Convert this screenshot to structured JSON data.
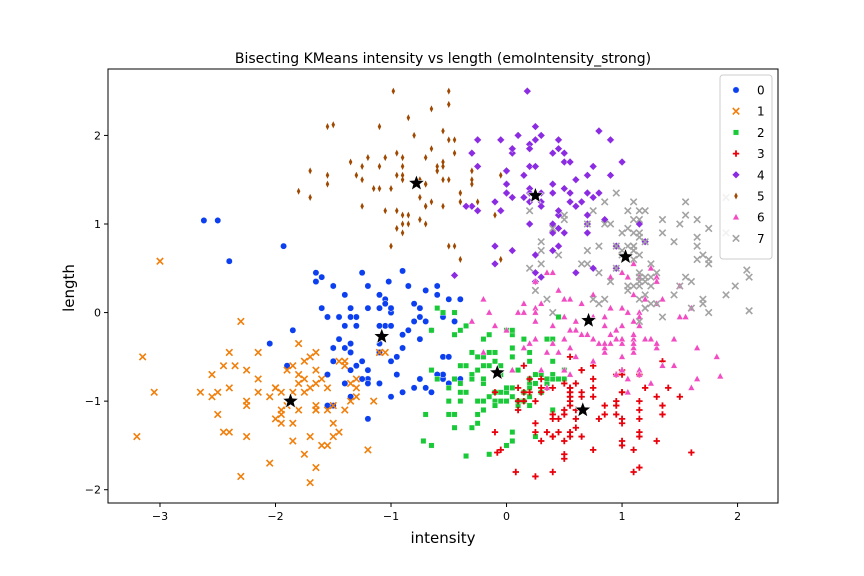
{
  "chart_data": {
    "type": "scatter",
    "title": "Bisecting KMeans intensity vs length (emoIntensity_strong)",
    "xlabel": "intensity",
    "ylabel": "length",
    "xlim": [
      -3.45,
      2.35
    ],
    "ylim": [
      -2.15,
      2.75
    ],
    "xticks": [
      -3,
      -2,
      -1,
      0,
      1,
      2
    ],
    "yticks": [
      -2,
      -1,
      0,
      1,
      2
    ],
    "grid": false,
    "legend_position": "top-right",
    "series": [
      {
        "name": "0",
        "marker": "circle",
        "color": "#0b3ff0",
        "seed": 11,
        "n": 95,
        "sampler": {
          "cx": -1.05,
          "cy": -0.35,
          "sx": 0.42,
          "sy": 0.42,
          "xmin": -2.45,
          "xmax": -0.35,
          "ymin": -1.25,
          "ymax": 0.55
        },
        "points": [
          [
            -2.62,
            1.04
          ],
          [
            -2.5,
            1.04
          ],
          [
            -2.4,
            0.58
          ],
          [
            -1.93,
            0.75
          ],
          [
            -1.02,
            0.35
          ],
          [
            -0.9,
            0.47
          ]
        ]
      },
      {
        "name": "1",
        "marker": "x",
        "color": "#f17f0c",
        "seed": 23,
        "n": 80,
        "sampler": {
          "cx": -1.85,
          "cy": -0.95,
          "sx": 0.5,
          "sy": 0.42,
          "xmin": -2.65,
          "xmax": -1.05,
          "ymin": -1.92,
          "ymax": -0.35
        },
        "points": [
          [
            -3.0,
            0.58
          ],
          [
            -3.15,
            -0.5
          ],
          [
            -3.2,
            -1.4
          ],
          [
            -3.05,
            -0.9
          ],
          [
            -2.3,
            -0.1
          ],
          [
            -1.7,
            -1.92
          ]
        ]
      },
      {
        "name": "2",
        "marker": "square",
        "color": "#1ac938",
        "seed": 37,
        "n": 110,
        "sampler": {
          "cx": -0.05,
          "cy": -0.7,
          "sx": 0.36,
          "sy": 0.42,
          "xmin": -0.72,
          "xmax": 0.55,
          "ymin": -1.65,
          "ymax": 0.1
        },
        "points": [
          [
            -0.72,
            -1.45
          ],
          [
            -0.35,
            -1.62
          ]
        ]
      },
      {
        "name": "3",
        "marker": "plus",
        "color": "#e8000b",
        "seed": 41,
        "n": 95,
        "sampler": {
          "cx": 0.65,
          "cy": -1.05,
          "sx": 0.45,
          "sy": 0.38,
          "xmin": -0.1,
          "xmax": 1.6,
          "ymin": -1.88,
          "ymax": -0.5
        },
        "points": [
          [
            1.6,
            -1.58
          ],
          [
            -0.08,
            -1.58
          ],
          [
            0.08,
            -1.8
          ]
        ]
      },
      {
        "name": "4",
        "marker": "diamond",
        "color": "#8b2be2",
        "seed": 53,
        "n": 85,
        "sampler": {
          "cx": 0.3,
          "cy": 1.2,
          "sx": 0.42,
          "sy": 0.5,
          "xmin": -0.5,
          "xmax": 1.2,
          "ymin": 0.35,
          "ymax": 2.15
        },
        "points": [
          [
            0.18,
            2.5
          ],
          [
            0.9,
            1.95
          ],
          [
            -0.45,
            0.42
          ]
        ]
      },
      {
        "name": "5",
        "marker": "thin_diamond",
        "color": "#9f4800",
        "seed": 67,
        "n": 75,
        "sampler": {
          "cx": -0.8,
          "cy": 1.45,
          "sx": 0.42,
          "sy": 0.45,
          "xmin": -1.8,
          "xmax": -0.05,
          "ymin": 0.55,
          "ymax": 2.5
        },
        "points": [
          [
            -1.55,
            2.1
          ],
          [
            -1.5,
            2.12
          ],
          [
            -0.98,
            2.5
          ],
          [
            -0.5,
            2.5
          ],
          [
            -1.8,
            1.37
          ]
        ]
      },
      {
        "name": "6",
        "marker": "triangle",
        "color": "#f14cc1",
        "seed": 71,
        "n": 110,
        "sampler": {
          "cx": 0.75,
          "cy": -0.15,
          "sx": 0.55,
          "sy": 0.4,
          "xmin": -0.35,
          "xmax": 1.85,
          "ymin": -1.0,
          "ymax": 0.55
        },
        "points": [
          [
            1.85,
            -0.72
          ],
          [
            1.82,
            -0.5
          ]
        ]
      },
      {
        "name": "7",
        "marker": "x",
        "color": "#a3a3a3",
        "seed": 89,
        "n": 100,
        "sampler": {
          "cx": 1.05,
          "cy": 0.62,
          "sx": 0.45,
          "sy": 0.4,
          "xmin": 0.2,
          "xmax": 2.1,
          "ymin": -0.15,
          "ymax": 1.4
        },
        "points": [
          [
            2.08,
            0.48
          ],
          [
            2.1,
            0.02
          ],
          [
            1.98,
            0.3
          ]
        ]
      }
    ],
    "centroids": [
      [
        -1.08,
        -0.27
      ],
      [
        -1.87,
        -1.0
      ],
      [
        -0.08,
        -0.68
      ],
      [
        0.66,
        -1.1
      ],
      [
        0.25,
        1.32
      ],
      [
        -0.78,
        1.46
      ],
      [
        0.71,
        -0.09
      ],
      [
        1.03,
        0.63
      ]
    ]
  }
}
